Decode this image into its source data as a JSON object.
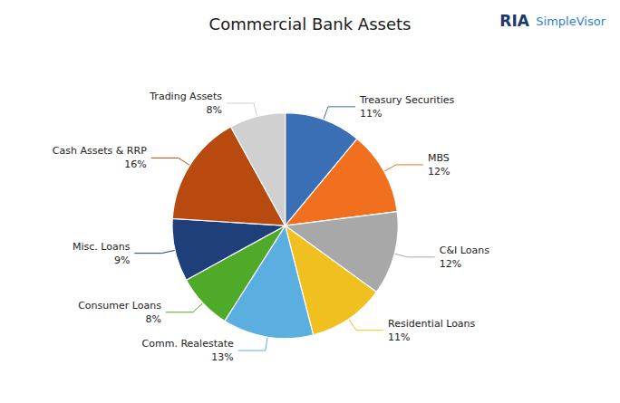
{
  "chart_data": {
    "type": "pie",
    "title": "Commercial Bank Assets",
    "categories": [
      "Treasury Securities",
      "MBS",
      "C&I Loans",
      "Residential Loans",
      "Comm. Realestate",
      "Consumer Loans",
      "Misc. Loans",
      "Cash Assets & RRP",
      "Trading Assets"
    ],
    "values": [
      11,
      12,
      12,
      11,
      13,
      8,
      9,
      16,
      8
    ],
    "value_labels": [
      "11%",
      "12%",
      "12%",
      "11%",
      "13%",
      "8%",
      "9%",
      "16%",
      "8%"
    ],
    "colors": [
      "#3A6EB5",
      "#F07020",
      "#A8A8A8",
      "#F0C020",
      "#5BAEE0",
      "#4EAA28",
      "#1E3F7A",
      "#B84A10",
      "#D0D0D0"
    ],
    "annotations": [
      {
        "text": "RIA",
        "color": "#1A3A6B"
      },
      {
        "text": "SimpleVisor",
        "color": "#3080CC"
      }
    ]
  }
}
